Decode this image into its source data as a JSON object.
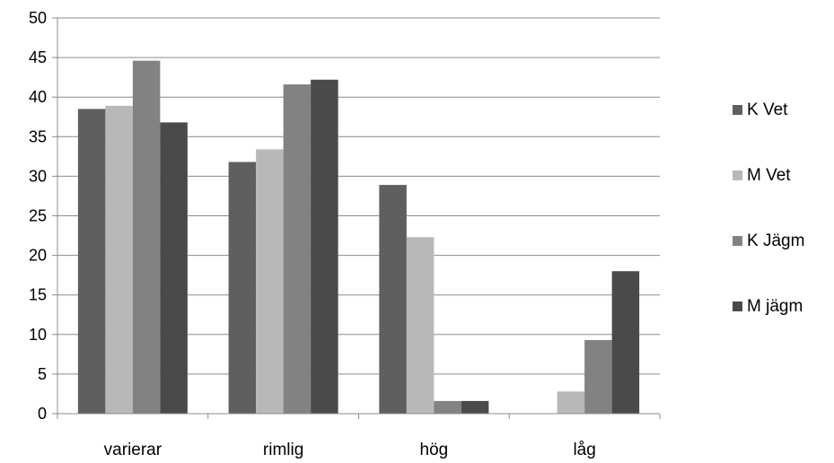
{
  "chart_data": {
    "type": "bar",
    "categories": [
      "varierar",
      "rimlig",
      "hög",
      "låg"
    ],
    "series": [
      {
        "name": "K Vet",
        "color": "#5f5f5f",
        "values": [
          38.5,
          31.8,
          28.9,
          0
        ]
      },
      {
        "name": "M Vet",
        "color": "#b8b8b8",
        "values": [
          38.9,
          33.4,
          22.3,
          2.8
        ]
      },
      {
        "name": "K Jägm",
        "color": "#828282",
        "values": [
          44.6,
          41.6,
          1.6,
          9.3
        ]
      },
      {
        "name": "M jägm",
        "color": "#4a4a4a",
        "values": [
          36.8,
          42.2,
          1.6,
          18.0
        ]
      }
    ],
    "ylim": [
      0,
      50
    ],
    "yticks": [
      0,
      5,
      10,
      15,
      20,
      25,
      30,
      35,
      40,
      45,
      50
    ],
    "grid": true,
    "legend_position": "right"
  }
}
